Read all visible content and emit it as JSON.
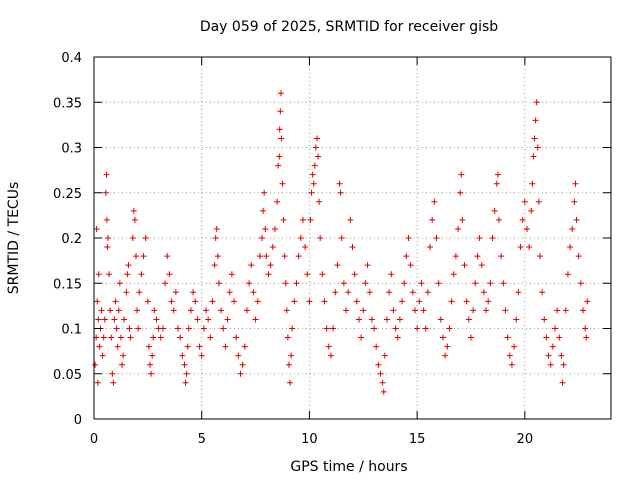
{
  "chart_data": {
    "type": "scatter",
    "title": "Day 059 of 2025, SRMTID for receiver gisb",
    "xlabel": "GPS time / hours",
    "ylabel": "SRMTID / TECUs",
    "xlim": [
      0,
      24
    ],
    "ylim": [
      0,
      0.4
    ],
    "xticks": [
      0,
      5,
      10,
      15,
      20
    ],
    "xtick_labels": [
      "0",
      "5",
      "10",
      "15",
      "20"
    ],
    "yticks": [
      0,
      0.05,
      0.1,
      0.15,
      0.2,
      0.25,
      0.3,
      0.35,
      0.4
    ],
    "ytick_labels": [
      "0",
      "0.05",
      "0.1",
      "0.15",
      "0.2",
      "0.25",
      "0.3",
      "0.35",
      "0.4"
    ],
    "grid": true,
    "marker": "+",
    "marker_color": "#e00000",
    "series": [
      {
        "name": "SRMTID",
        "points": [
          [
            0.05,
            0.06
          ],
          [
            0.1,
            0.09
          ],
          [
            0.12,
            0.21
          ],
          [
            0.15,
            0.13
          ],
          [
            0.18,
            0.04
          ],
          [
            0.2,
            0.11
          ],
          [
            0.22,
            0.16
          ],
          [
            0.25,
            0.08
          ],
          [
            0.3,
            0.1
          ],
          [
            0.35,
            0.12
          ],
          [
            0.4,
            0.07
          ],
          [
            0.45,
            0.09
          ],
          [
            0.5,
            0.11
          ],
          [
            0.55,
            0.25
          ],
          [
            0.58,
            0.27
          ],
          [
            0.6,
            0.22
          ],
          [
            0.62,
            0.19
          ],
          [
            0.65,
            0.2
          ],
          [
            0.7,
            0.16
          ],
          [
            0.75,
            0.12
          ],
          [
            0.8,
            0.09
          ],
          [
            0.85,
            0.05
          ],
          [
            0.9,
            0.04
          ],
          [
            0.95,
            0.11
          ],
          [
            1.0,
            0.13
          ],
          [
            1.05,
            0.1
          ],
          [
            1.1,
            0.08
          ],
          [
            1.15,
            0.12
          ],
          [
            1.2,
            0.15
          ],
          [
            1.25,
            0.09
          ],
          [
            1.3,
            0.06
          ],
          [
            1.35,
            0.07
          ],
          [
            1.4,
            0.11
          ],
          [
            1.5,
            0.14
          ],
          [
            1.55,
            0.16
          ],
          [
            1.6,
            0.17
          ],
          [
            1.65,
            0.1
          ],
          [
            1.7,
            0.09
          ],
          [
            1.8,
            0.2
          ],
          [
            1.85,
            0.23
          ],
          [
            1.9,
            0.22
          ],
          [
            1.95,
            0.18
          ],
          [
            2.0,
            0.12
          ],
          [
            2.05,
            0.1
          ],
          [
            2.1,
            0.14
          ],
          [
            2.2,
            0.16
          ],
          [
            2.3,
            0.18
          ],
          [
            2.4,
            0.2
          ],
          [
            2.5,
            0.13
          ],
          [
            2.55,
            0.08
          ],
          [
            2.6,
            0.06
          ],
          [
            2.65,
            0.05
          ],
          [
            2.7,
            0.07
          ],
          [
            2.75,
            0.09
          ],
          [
            2.8,
            0.12
          ],
          [
            2.9,
            0.11
          ],
          [
            3.0,
            0.1
          ],
          [
            3.1,
            0.09
          ],
          [
            3.2,
            0.1
          ],
          [
            3.3,
            0.15
          ],
          [
            3.4,
            0.18
          ],
          [
            3.5,
            0.16
          ],
          [
            3.6,
            0.13
          ],
          [
            3.7,
            0.12
          ],
          [
            3.8,
            0.14
          ],
          [
            3.9,
            0.1
          ],
          [
            4.0,
            0.09
          ],
          [
            4.1,
            0.07
          ],
          [
            4.2,
            0.06
          ],
          [
            4.25,
            0.04
          ],
          [
            4.3,
            0.05
          ],
          [
            4.35,
            0.08
          ],
          [
            4.4,
            0.1
          ],
          [
            4.5,
            0.12
          ],
          [
            4.6,
            0.14
          ],
          [
            4.7,
            0.13
          ],
          [
            4.8,
            0.11
          ],
          [
            4.9,
            0.08
          ],
          [
            5.0,
            0.07
          ],
          [
            5.1,
            0.1
          ],
          [
            5.2,
            0.12
          ],
          [
            5.3,
            0.11
          ],
          [
            5.4,
            0.09
          ],
          [
            5.5,
            0.13
          ],
          [
            5.6,
            0.17
          ],
          [
            5.65,
            0.2
          ],
          [
            5.7,
            0.21
          ],
          [
            5.75,
            0.18
          ],
          [
            5.8,
            0.15
          ],
          [
            5.9,
            0.12
          ],
          [
            6.0,
            0.1
          ],
          [
            6.1,
            0.08
          ],
          [
            6.2,
            0.11
          ],
          [
            6.3,
            0.14
          ],
          [
            6.4,
            0.16
          ],
          [
            6.5,
            0.13
          ],
          [
            6.6,
            0.09
          ],
          [
            6.7,
            0.07
          ],
          [
            6.8,
            0.05
          ],
          [
            6.9,
            0.06
          ],
          [
            7.0,
            0.08
          ],
          [
            7.1,
            0.12
          ],
          [
            7.2,
            0.15
          ],
          [
            7.3,
            0.17
          ],
          [
            7.4,
            0.14
          ],
          [
            7.5,
            0.11
          ],
          [
            7.6,
            0.13
          ],
          [
            7.7,
            0.18
          ],
          [
            7.8,
            0.2
          ],
          [
            7.85,
            0.23
          ],
          [
            7.9,
            0.25
          ],
          [
            7.95,
            0.21
          ],
          [
            8.0,
            0.18
          ],
          [
            8.1,
            0.16
          ],
          [
            8.2,
            0.17
          ],
          [
            8.3,
            0.19
          ],
          [
            8.4,
            0.21
          ],
          [
            8.5,
            0.24
          ],
          [
            8.55,
            0.28
          ],
          [
            8.6,
            0.29
          ],
          [
            8.62,
            0.32
          ],
          [
            8.65,
            0.34
          ],
          [
            8.68,
            0.36
          ],
          [
            8.7,
            0.31
          ],
          [
            8.75,
            0.26
          ],
          [
            8.8,
            0.22
          ],
          [
            8.85,
            0.18
          ],
          [
            8.9,
            0.15
          ],
          [
            8.95,
            0.12
          ],
          [
            9.0,
            0.09
          ],
          [
            9.05,
            0.06
          ],
          [
            9.1,
            0.04
          ],
          [
            9.15,
            0.07
          ],
          [
            9.2,
            0.1
          ],
          [
            9.3,
            0.13
          ],
          [
            9.4,
            0.15
          ],
          [
            9.5,
            0.18
          ],
          [
            9.6,
            0.2
          ],
          [
            9.7,
            0.22
          ],
          [
            9.8,
            0.19
          ],
          [
            9.9,
            0.16
          ],
          [
            10.0,
            0.13
          ],
          [
            10.05,
            0.22
          ],
          [
            10.1,
            0.25
          ],
          [
            10.15,
            0.27
          ],
          [
            10.2,
            0.26
          ],
          [
            10.25,
            0.28
          ],
          [
            10.3,
            0.3
          ],
          [
            10.35,
            0.31
          ],
          [
            10.4,
            0.29
          ],
          [
            10.45,
            0.24
          ],
          [
            10.5,
            0.2
          ],
          [
            10.6,
            0.16
          ],
          [
            10.7,
            0.13
          ],
          [
            10.8,
            0.1
          ],
          [
            10.9,
            0.08
          ],
          [
            11.0,
            0.07
          ],
          [
            11.1,
            0.1
          ],
          [
            11.2,
            0.14
          ],
          [
            11.3,
            0.17
          ],
          [
            11.4,
            0.26
          ],
          [
            11.45,
            0.25
          ],
          [
            11.5,
            0.2
          ],
          [
            11.6,
            0.15
          ],
          [
            11.7,
            0.12
          ],
          [
            11.8,
            0.14
          ],
          [
            11.9,
            0.22
          ],
          [
            12.0,
            0.19
          ],
          [
            12.1,
            0.16
          ],
          [
            12.2,
            0.13
          ],
          [
            12.3,
            0.11
          ],
          [
            12.4,
            0.09
          ],
          [
            12.5,
            0.12
          ],
          [
            12.6,
            0.15
          ],
          [
            12.7,
            0.17
          ],
          [
            12.8,
            0.14
          ],
          [
            12.9,
            0.11
          ],
          [
            13.0,
            0.1
          ],
          [
            13.1,
            0.08
          ],
          [
            13.2,
            0.06
          ],
          [
            13.3,
            0.05
          ],
          [
            13.4,
            0.04
          ],
          [
            13.45,
            0.03
          ],
          [
            13.5,
            0.07
          ],
          [
            13.6,
            0.11
          ],
          [
            13.7,
            0.14
          ],
          [
            13.8,
            0.16
          ],
          [
            13.9,
            0.12
          ],
          [
            14.0,
            0.1
          ],
          [
            14.1,
            0.09
          ],
          [
            14.2,
            0.11
          ],
          [
            14.3,
            0.13
          ],
          [
            14.4,
            0.15
          ],
          [
            14.5,
            0.18
          ],
          [
            14.6,
            0.2
          ],
          [
            14.7,
            0.17
          ],
          [
            14.8,
            0.14
          ],
          [
            14.9,
            0.12
          ],
          [
            15.0,
            0.1
          ],
          [
            15.1,
            0.13
          ],
          [
            15.2,
            0.15
          ],
          [
            15.3,
            0.12
          ],
          [
            15.4,
            0.1
          ],
          [
            15.5,
            0.14
          ],
          [
            15.6,
            0.19
          ],
          [
            15.7,
            0.22
          ],
          [
            15.8,
            0.24
          ],
          [
            15.9,
            0.2
          ],
          [
            16.0,
            0.15
          ],
          [
            16.1,
            0.11
          ],
          [
            16.2,
            0.09
          ],
          [
            16.3,
            0.07
          ],
          [
            16.4,
            0.08
          ],
          [
            16.5,
            0.1
          ],
          [
            16.6,
            0.13
          ],
          [
            16.7,
            0.16
          ],
          [
            16.8,
            0.18
          ],
          [
            16.9,
            0.21
          ],
          [
            17.0,
            0.25
          ],
          [
            17.05,
            0.27
          ],
          [
            17.1,
            0.22
          ],
          [
            17.2,
            0.17
          ],
          [
            17.3,
            0.13
          ],
          [
            17.4,
            0.11
          ],
          [
            17.5,
            0.09
          ],
          [
            17.6,
            0.12
          ],
          [
            17.7,
            0.15
          ],
          [
            17.8,
            0.18
          ],
          [
            17.9,
            0.2
          ],
          [
            18.0,
            0.17
          ],
          [
            18.1,
            0.14
          ],
          [
            18.2,
            0.12
          ],
          [
            18.3,
            0.13
          ],
          [
            18.4,
            0.15
          ],
          [
            18.5,
            0.2
          ],
          [
            18.6,
            0.23
          ],
          [
            18.7,
            0.26
          ],
          [
            18.75,
            0.27
          ],
          [
            18.8,
            0.22
          ],
          [
            18.9,
            0.18
          ],
          [
            19.0,
            0.15
          ],
          [
            19.1,
            0.12
          ],
          [
            19.2,
            0.09
          ],
          [
            19.3,
            0.07
          ],
          [
            19.4,
            0.06
          ],
          [
            19.5,
            0.08
          ],
          [
            19.6,
            0.11
          ],
          [
            19.7,
            0.14
          ],
          [
            19.8,
            0.19
          ],
          [
            19.9,
            0.22
          ],
          [
            20.0,
            0.24
          ],
          [
            20.1,
            0.21
          ],
          [
            20.2,
            0.19
          ],
          [
            20.3,
            0.23
          ],
          [
            20.35,
            0.26
          ],
          [
            20.4,
            0.29
          ],
          [
            20.45,
            0.31
          ],
          [
            20.5,
            0.33
          ],
          [
            20.55,
            0.35
          ],
          [
            20.6,
            0.3
          ],
          [
            20.65,
            0.24
          ],
          [
            20.7,
            0.18
          ],
          [
            20.8,
            0.14
          ],
          [
            20.9,
            0.11
          ],
          [
            21.0,
            0.09
          ],
          [
            21.1,
            0.07
          ],
          [
            21.2,
            0.06
          ],
          [
            21.3,
            0.08
          ],
          [
            21.4,
            0.1
          ],
          [
            21.5,
            0.12
          ],
          [
            21.6,
            0.09
          ],
          [
            21.7,
            0.07
          ],
          [
            21.75,
            0.04
          ],
          [
            21.8,
            0.06
          ],
          [
            21.9,
            0.12
          ],
          [
            22.0,
            0.16
          ],
          [
            22.1,
            0.19
          ],
          [
            22.2,
            0.21
          ],
          [
            22.3,
            0.24
          ],
          [
            22.35,
            0.26
          ],
          [
            22.4,
            0.22
          ],
          [
            22.5,
            0.18
          ],
          [
            22.6,
            0.15
          ],
          [
            22.7,
            0.12
          ],
          [
            22.8,
            0.1
          ],
          [
            22.85,
            0.09
          ],
          [
            22.9,
            0.13
          ]
        ]
      }
    ]
  }
}
